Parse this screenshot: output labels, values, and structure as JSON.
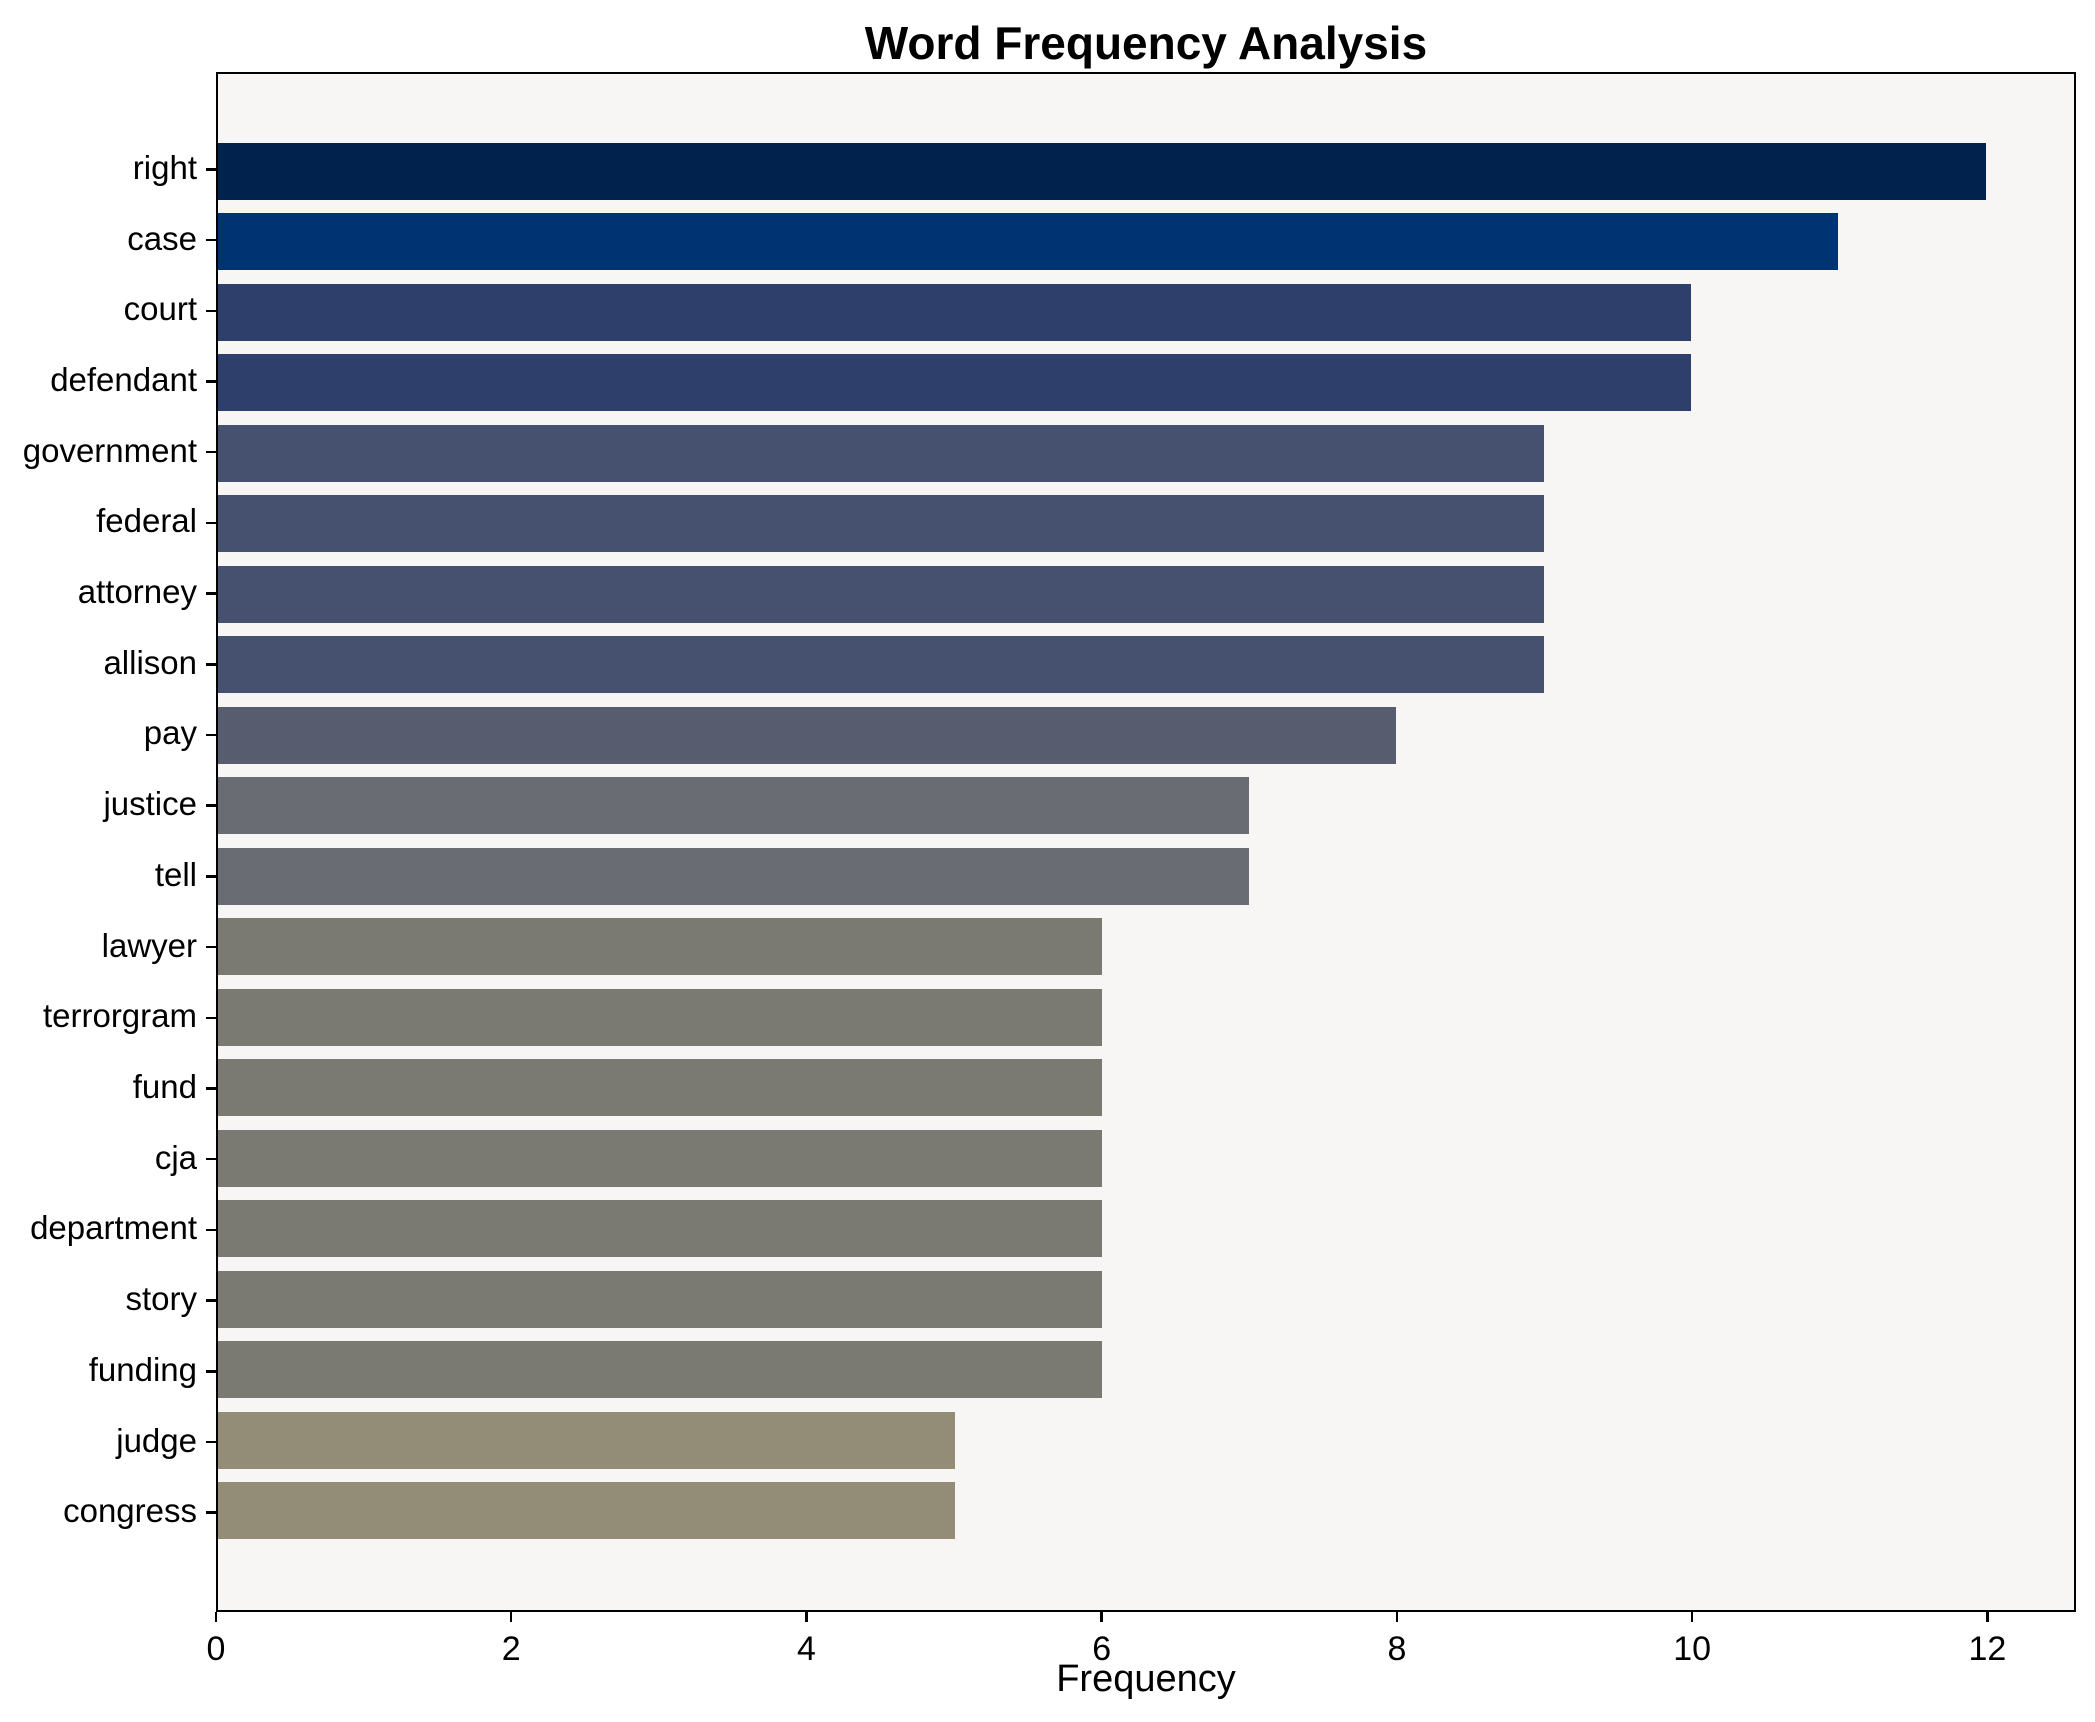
{
  "title": "Word Frequency Analysis",
  "chart_data": {
    "type": "bar",
    "orientation": "horizontal",
    "title": "Word Frequency Analysis",
    "xlabel": "Frequency",
    "ylabel": "",
    "categories": [
      "right",
      "case",
      "court",
      "defendant",
      "government",
      "federal",
      "attorney",
      "allison",
      "pay",
      "justice",
      "tell",
      "lawyer",
      "terrorgram",
      "fund",
      "cja",
      "department",
      "story",
      "funding",
      "judge",
      "congress"
    ],
    "values": [
      12,
      11,
      10,
      10,
      9,
      9,
      9,
      9,
      8,
      7,
      7,
      6,
      6,
      6,
      6,
      6,
      6,
      6,
      5,
      5
    ],
    "bar_colors": [
      "#00224D",
      "#003371",
      "#2E3F6B",
      "#2E3F6B",
      "#46506F",
      "#46506F",
      "#46506F",
      "#46506F",
      "#575C6F",
      "#696C73",
      "#696C73",
      "#7A7A73",
      "#7A7A73",
      "#7A7A73",
      "#7A7A73",
      "#7A7A73",
      "#7A7A73",
      "#7A7A73",
      "#938C77",
      "#938C77"
    ],
    "colormap": "cividis",
    "xlim": [
      0,
      12.6
    ],
    "xticks": [
      0,
      2,
      4,
      6,
      8,
      10,
      12
    ],
    "grid": false,
    "legend": null,
    "plot_background": "#F7F6F4",
    "figure_background": "#FFFFFF",
    "spine_color": "#000000"
  }
}
